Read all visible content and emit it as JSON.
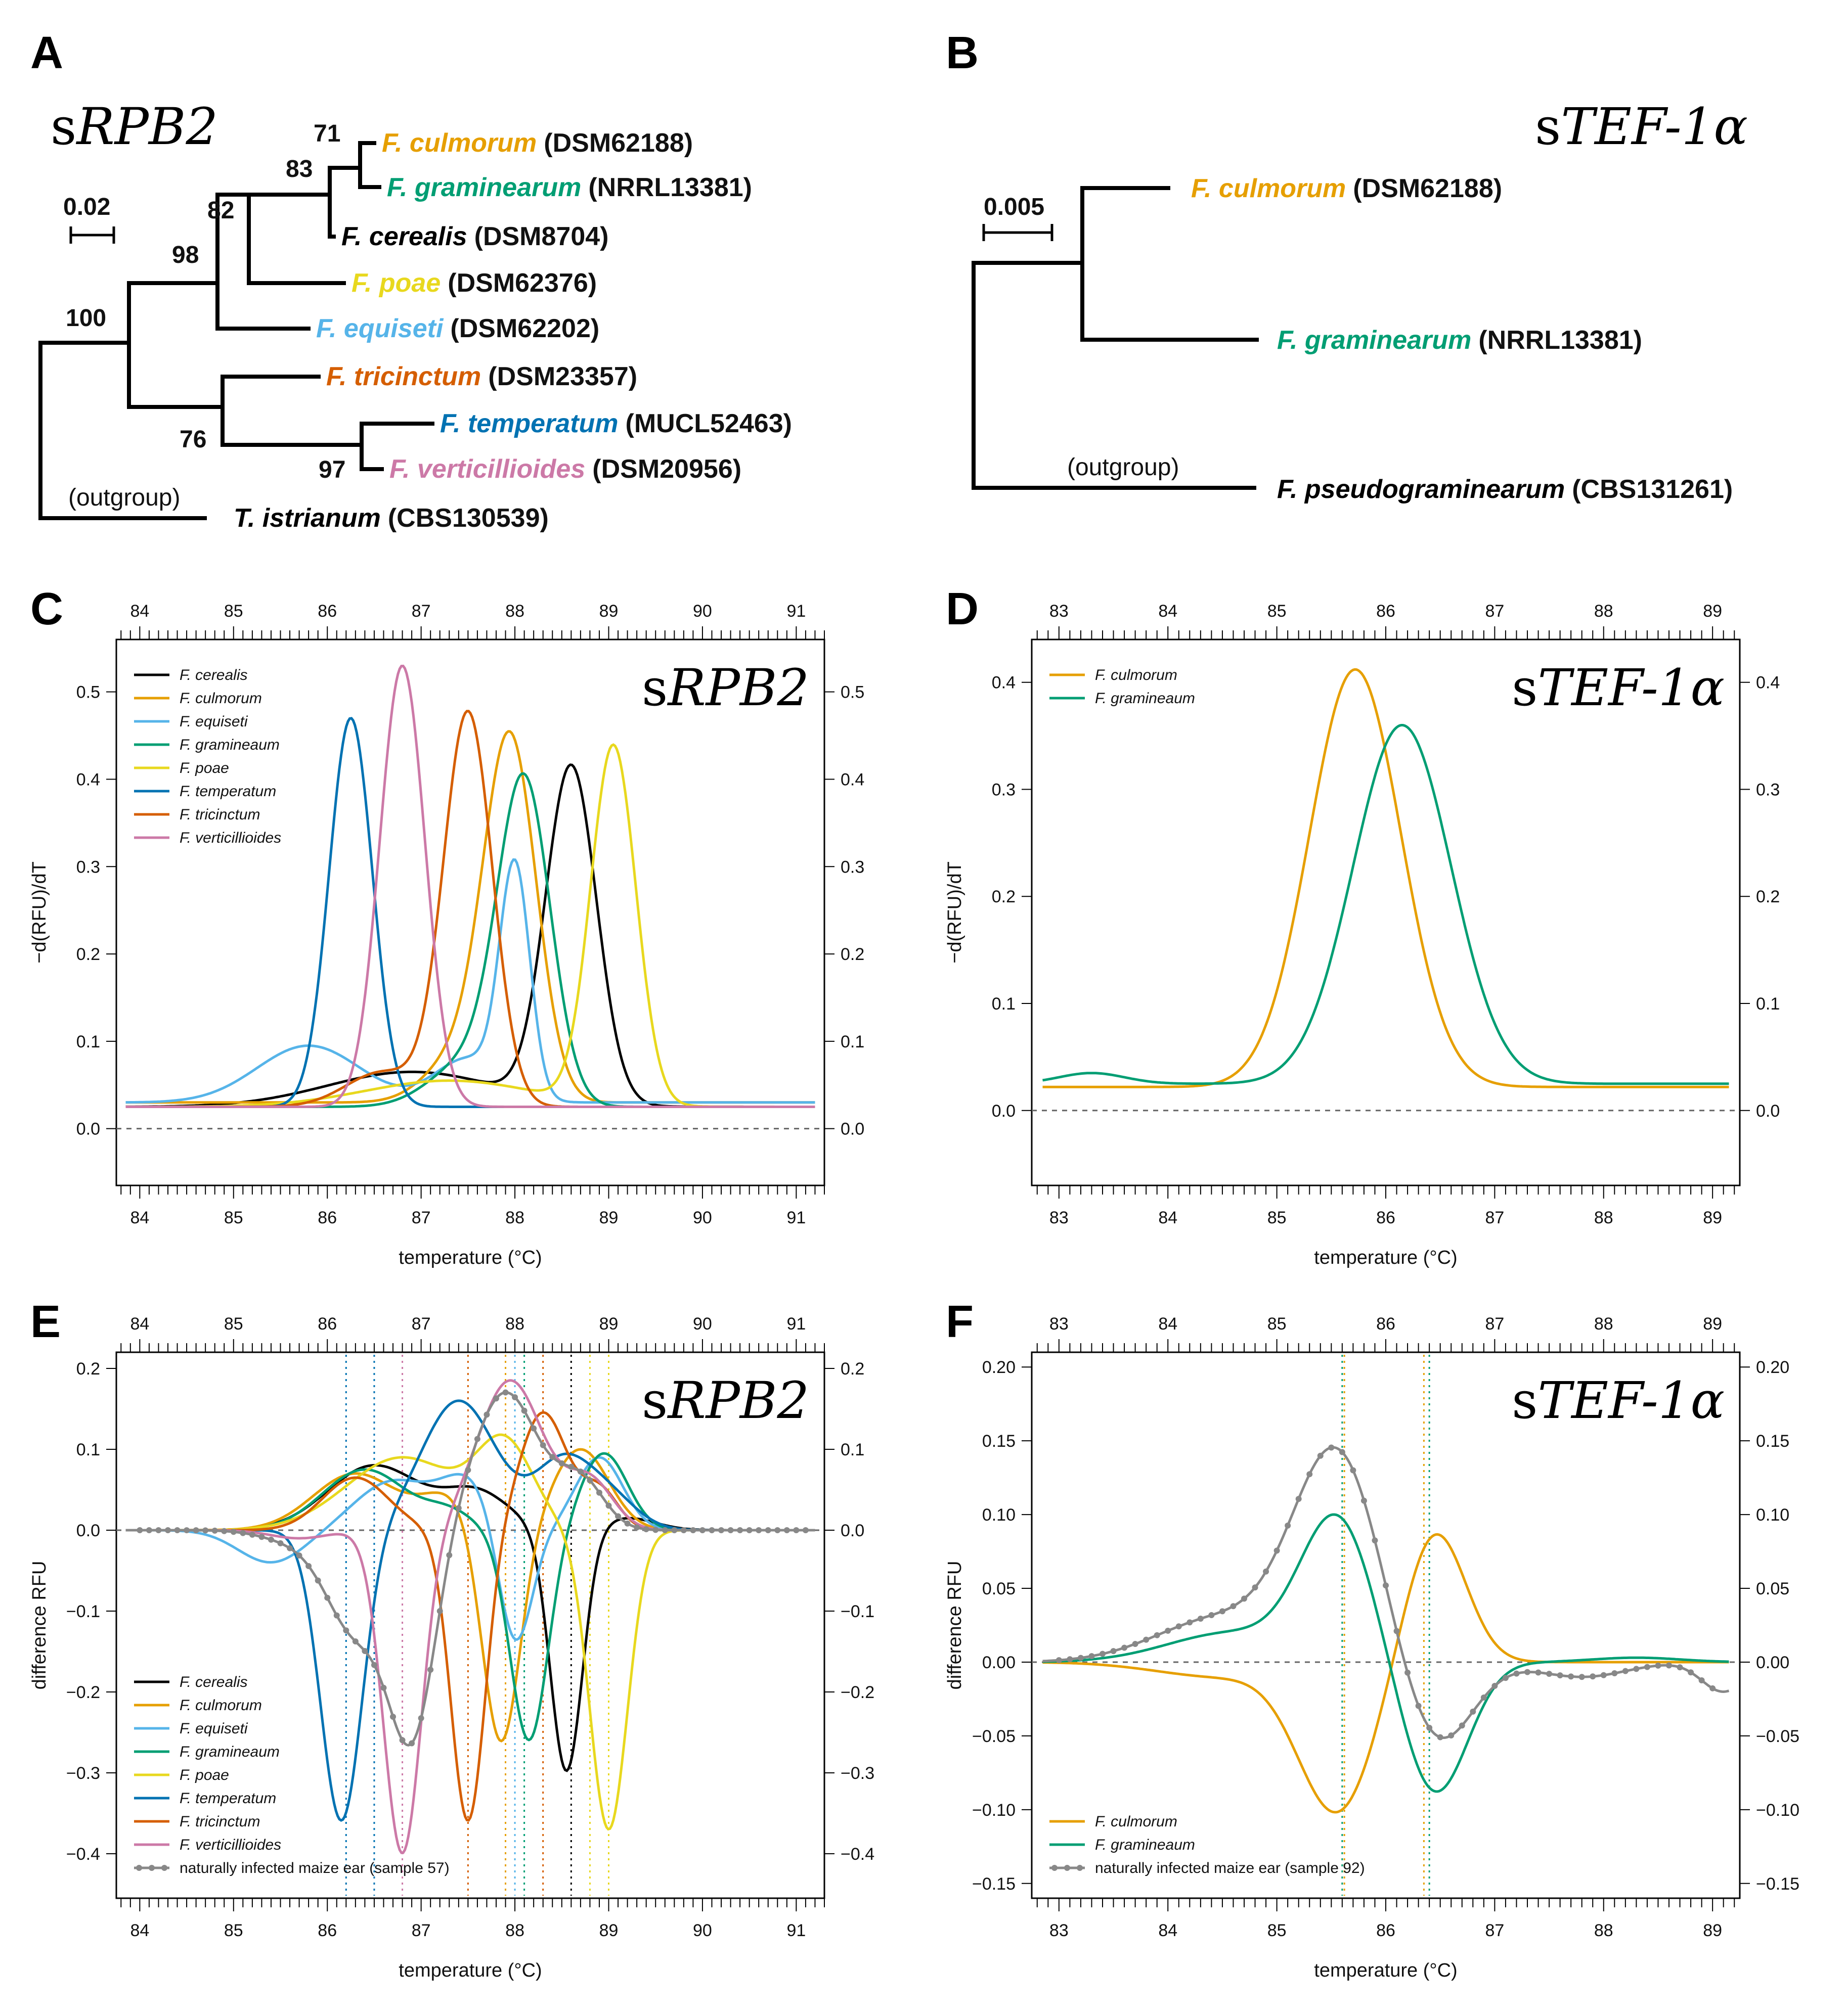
{
  "panels": {
    "A": {
      "letter": "A",
      "title_prefix": "s",
      "title_gene": "RPB2",
      "scale_label": "0.02",
      "outgroup_label": "(outgroup)",
      "taxa": [
        {
          "name": "F. culmorum",
          "strain": "(DSM62188)",
          "color": "#E69F00"
        },
        {
          "name": "F. graminearum",
          "strain": "(NRRL13381)",
          "color": "#009E73"
        },
        {
          "name": "F. cerealis",
          "strain": "(DSM8704)",
          "color": "#000000"
        },
        {
          "name": "F. poae",
          "strain": "(DSM62376)",
          "color": "#E8D81E"
        },
        {
          "name": "F. equiseti",
          "strain": "(DSM62202)",
          "color": "#56B4E9"
        },
        {
          "name": "F. tricinctum",
          "strain": "(DSM23357)",
          "color": "#D55E00"
        },
        {
          "name": "F. temperatum",
          "strain": "(MUCL52463)",
          "color": "#0072B2"
        },
        {
          "name": "F. verticillioides",
          "strain": "(DSM20956)",
          "color": "#CC79A7"
        },
        {
          "name": "T. istrianum",
          "strain": "(CBS130539)",
          "color": "#000000"
        }
      ],
      "bootstraps": [
        "71",
        "83",
        "82",
        "98",
        "100",
        "76",
        "97"
      ]
    },
    "B": {
      "letter": "B",
      "title_prefix": "s",
      "title_gene": "TEF-1α",
      "scale_label": "0.005",
      "outgroup_label": "(outgroup)",
      "taxa": [
        {
          "name": "F. culmorum",
          "strain": "(DSM62188)",
          "color": "#E69F00"
        },
        {
          "name": "F. graminearum",
          "strain": "(NRRL13381)",
          "color": "#009E73"
        },
        {
          "name": "F. pseudograminearum",
          "strain": "(CBS131261)",
          "color": "#000000"
        }
      ]
    },
    "C": {
      "letter": "C"
    },
    "D": {
      "letter": "D"
    },
    "E": {
      "letter": "E"
    },
    "F": {
      "letter": "F"
    }
  },
  "chart_data": [
    {
      "id": "C",
      "type": "line",
      "title_prefix": "s",
      "title_gene": "RPB2",
      "xlabel": "temperature (°C)",
      "ylabel": "−d(RFU)/dT",
      "xlim": [
        83.75,
        91.3
      ],
      "ylim": [
        -0.065,
        0.56
      ],
      "xticks": [
        84,
        85,
        86,
        87,
        88,
        89,
        90,
        91
      ],
      "yticks": [
        0.0,
        0.1,
        0.2,
        0.3,
        0.4,
        0.5
      ],
      "ytick_labels": [
        "0.0",
        "0.1",
        "0.2",
        "0.3",
        "0.4",
        "0.5"
      ],
      "baseline": 0,
      "legend_position": "top-left",
      "series": [
        {
          "name": "F. cerealis",
          "color": "#000000",
          "base": 0.025,
          "peaks": [
            [
              88.6,
              0.385,
              0.27
            ],
            [
              86.9,
              0.04,
              0.9
            ]
          ]
        },
        {
          "name": "F. culmorum",
          "color": "#E69F00",
          "base": 0.03,
          "peaks": [
            [
              87.95,
              0.41,
              0.28
            ],
            [
              87.4,
              0.05,
              0.35
            ]
          ]
        },
        {
          "name": "F. equiseti",
          "color": "#56B4E9",
          "base": 0.03,
          "peaks": [
            [
              88.0,
              0.26,
              0.16
            ],
            [
              85.8,
              0.065,
              0.55
            ],
            [
              87.5,
              0.05,
              0.35
            ]
          ]
        },
        {
          "name": "F. gramineaum",
          "color": "#009E73",
          "base": 0.025,
          "peaks": [
            [
              88.1,
              0.365,
              0.28
            ],
            [
              87.5,
              0.05,
              0.4
            ]
          ]
        },
        {
          "name": "F. poae",
          "color": "#E8D81E",
          "base": 0.025,
          "peaks": [
            [
              89.05,
              0.41,
              0.24
            ],
            [
              87.3,
              0.03,
              0.9
            ]
          ]
        },
        {
          "name": "F. temperatum",
          "color": "#0072B2",
          "base": 0.025,
          "peaks": [
            [
              86.25,
              0.445,
              0.23
            ]
          ]
        },
        {
          "name": "F. tricinctum",
          "color": "#D55E00",
          "base": 0.025,
          "peaks": [
            [
              87.5,
              0.45,
              0.26
            ],
            [
              86.6,
              0.04,
              0.4
            ]
          ]
        },
        {
          "name": "F. verticillioides",
          "color": "#CC79A7",
          "base": 0.025,
          "peaks": [
            [
              86.8,
              0.505,
              0.24
            ]
          ]
        }
      ]
    },
    {
      "id": "D",
      "type": "line",
      "title_prefix": "s",
      "title_gene": "TEF-1α",
      "xlabel": "temperature (°C)",
      "ylabel": "−d(RFU)/dT",
      "xlim": [
        82.75,
        89.25
      ],
      "ylim": [
        -0.07,
        0.44
      ],
      "xticks": [
        83,
        84,
        85,
        86,
        87,
        88,
        89
      ],
      "yticks": [
        0.0,
        0.1,
        0.2,
        0.3,
        0.4
      ],
      "ytick_labels": [
        "0.0",
        "0.1",
        "0.2",
        "0.3",
        "0.4"
      ],
      "baseline": 0,
      "legend_position": "top-left",
      "series": [
        {
          "name": "F. culmorum",
          "color": "#E69F00",
          "base": 0.022,
          "peaks": [
            [
              85.72,
              0.39,
              0.42
            ]
          ]
        },
        {
          "name": "F. gramineaum",
          "color": "#009E73",
          "base": 0.025,
          "peaks": [
            [
              86.15,
              0.335,
              0.45
            ],
            [
              83.3,
              0.01,
              0.3
            ]
          ]
        }
      ]
    },
    {
      "id": "E",
      "type": "line",
      "title_prefix": "s",
      "title_gene": "RPB2",
      "xlabel": "temperature (°C)",
      "ylabel": "difference RFU",
      "xlim": [
        83.75,
        91.3
      ],
      "ylim": [
        -0.455,
        0.22
      ],
      "xticks": [
        84,
        85,
        86,
        87,
        88,
        89,
        90,
        91
      ],
      "yticks": [
        -0.4,
        -0.3,
        -0.2,
        -0.1,
        0.0,
        0.1,
        0.2
      ],
      "ytick_labels": [
        "−0.4",
        "−0.3",
        "−0.2",
        "−0.1",
        "0.0",
        "0.1",
        "0.2"
      ],
      "baseline": 0,
      "legend_position": "bottom-left",
      "vlines": [
        {
          "x": 86.2,
          "color": "#0072B2"
        },
        {
          "x": 86.5,
          "color": "#0072B2"
        },
        {
          "x": 86.8,
          "color": "#CC79A7"
        },
        {
          "x": 87.5,
          "color": "#D55E00"
        },
        {
          "x": 87.9,
          "color": "#E69F00"
        },
        {
          "x": 88.0,
          "color": "#56B4E9"
        },
        {
          "x": 88.1,
          "color": "#009E73"
        },
        {
          "x": 88.3,
          "color": "#D55E00"
        },
        {
          "x": 88.6,
          "color": "#000000"
        },
        {
          "x": 88.8,
          "color": "#E8D81E"
        },
        {
          "x": 89.0,
          "color": "#E8D81E"
        }
      ],
      "series": [
        {
          "name": "F. cerealis",
          "color": "#000000",
          "peaks": [
            [
              86.5,
              0.08,
              0.5
            ],
            [
              87.6,
              0.045,
              0.35
            ],
            [
              88.55,
              -0.3,
              0.17
            ],
            [
              89.2,
              0.015,
              0.3
            ]
          ]
        },
        {
          "name": "F. culmorum",
          "color": "#E69F00",
          "peaks": [
            [
              86.3,
              0.07,
              0.45
            ],
            [
              87.85,
              -0.27,
              0.2
            ],
            [
              88.7,
              0.1,
              0.3
            ],
            [
              87.3,
              0.04,
              0.3
            ]
          ]
        },
        {
          "name": "F. equiseti",
          "color": "#56B4E9",
          "peaks": [
            [
              85.4,
              -0.04,
              0.35
            ],
            [
              86.7,
              0.06,
              0.4
            ],
            [
              87.5,
              0.06,
              0.3
            ],
            [
              88.0,
              -0.15,
              0.18
            ],
            [
              88.9,
              0.09,
              0.25
            ]
          ]
        },
        {
          "name": "F. gramineaum",
          "color": "#009E73",
          "peaks": [
            [
              86.4,
              0.075,
              0.45
            ],
            [
              88.15,
              -0.26,
              0.2
            ],
            [
              88.95,
              0.095,
              0.25
            ],
            [
              87.3,
              0.02,
              0.25
            ]
          ]
        },
        {
          "name": "F. poae",
          "color": "#E8D81E",
          "peaks": [
            [
              86.8,
              0.09,
              0.6
            ],
            [
              87.9,
              0.1,
              0.3
            ],
            [
              89.0,
              -0.37,
              0.2
            ]
          ]
        },
        {
          "name": "F. temperatum",
          "color": "#0072B2",
          "peaks": [
            [
              86.15,
              -0.36,
              0.22
            ],
            [
              87.4,
              0.16,
              0.4
            ],
            [
              88.5,
              0.08,
              0.3
            ],
            [
              89.0,
              0.04,
              0.3
            ]
          ]
        },
        {
          "name": "F. tricinctum",
          "color": "#D55E00",
          "peaks": [
            [
              86.3,
              0.065,
              0.35
            ],
            [
              87.5,
              -0.36,
              0.18
            ],
            [
              88.3,
              0.145,
              0.25
            ],
            [
              88.9,
              0.05,
              0.2
            ]
          ]
        },
        {
          "name": "F. verticillioides",
          "color": "#CC79A7",
          "peaks": [
            [
              86.8,
              -0.4,
              0.2
            ],
            [
              87.95,
              0.185,
              0.35
            ],
            [
              88.8,
              0.06,
              0.25
            ],
            [
              85.7,
              -0.01,
              0.3
            ]
          ]
        },
        {
          "name": "naturally infected maize ear (sample 57)",
          "color": "#888888",
          "markers": true,
          "peaks": [
            [
              86.3,
              -0.12,
              0.3
            ],
            [
              86.9,
              -0.25,
              0.25
            ],
            [
              87.9,
              0.17,
              0.35
            ],
            [
              88.7,
              0.06,
              0.25
            ],
            [
              85.7,
              -0.015,
              0.35
            ]
          ]
        }
      ]
    },
    {
      "id": "F",
      "type": "line",
      "title_prefix": "s",
      "title_gene": "TEF-1α",
      "xlabel": "temperature (°C)",
      "ylabel": "difference RFU",
      "xlim": [
        82.75,
        89.25
      ],
      "ylim": [
        -0.16,
        0.21
      ],
      "xticks": [
        83,
        84,
        85,
        86,
        87,
        88,
        89
      ],
      "yticks": [
        -0.15,
        -0.1,
        -0.05,
        0.0,
        0.05,
        0.1,
        0.15,
        0.2
      ],
      "ytick_labels": [
        "−0.15",
        "−0.10",
        "−0.05",
        "0.00",
        "0.05",
        "0.10",
        "0.15",
        "0.20"
      ],
      "baseline": 0,
      "legend_position": "bottom-left",
      "vlines": [
        {
          "x": 85.6,
          "color": "#009E73"
        },
        {
          "x": 85.62,
          "color": "#E69F00"
        },
        {
          "x": 86.35,
          "color": "#E69F00"
        },
        {
          "x": 86.4,
          "color": "#009E73"
        }
      ],
      "series": [
        {
          "name": "F. culmorum",
          "color": "#E69F00",
          "peaks": [
            [
              85.55,
              -0.1,
              0.35
            ],
            [
              86.45,
              0.09,
              0.28
            ],
            [
              84.5,
              -0.01,
              0.6
            ]
          ]
        },
        {
          "name": "F. gramineaum",
          "color": "#009E73",
          "peaks": [
            [
              85.55,
              0.095,
              0.33
            ],
            [
              86.45,
              -0.09,
              0.3
            ],
            [
              84.6,
              0.02,
              0.6
            ],
            [
              88.3,
              0.003,
              0.4
            ]
          ]
        },
        {
          "name": "naturally infected maize ear (sample 92)",
          "color": "#888888",
          "markers": true,
          "peaks": [
            [
              85.55,
              0.14,
              0.4
            ],
            [
              86.45,
              -0.06,
              0.33
            ],
            [
              84.5,
              0.03,
              0.6
            ],
            [
              87.8,
              -0.01,
              0.4
            ],
            [
              89.1,
              -0.02,
              0.2
            ]
          ]
        }
      ]
    }
  ]
}
